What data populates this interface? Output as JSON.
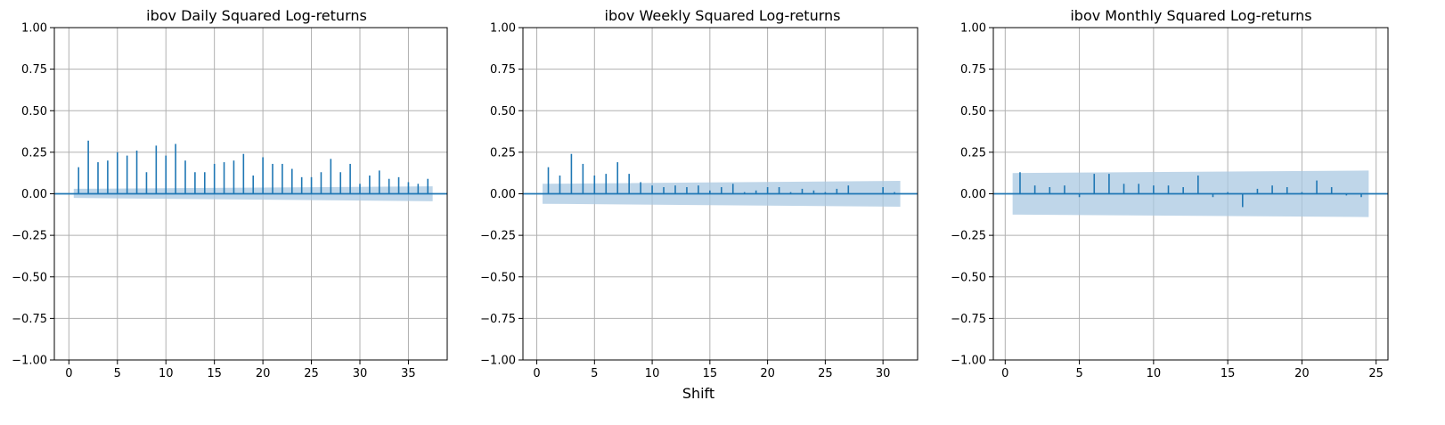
{
  "figure": {
    "xlabel": "Shift"
  },
  "colors": {
    "stem": "#1f77b4",
    "band": "#a9c8e2",
    "grid": "#b0b0b0"
  },
  "chart_data": [
    {
      "type": "bar",
      "title": "ibov Daily Squared Log-returns",
      "xlim": [
        -1.5,
        39
      ],
      "ylim": [
        -1,
        1
      ],
      "xticks": [
        0,
        5,
        10,
        15,
        20,
        25,
        30,
        35
      ],
      "yticks": [
        -1,
        -0.75,
        -0.5,
        -0.25,
        0,
        0.25,
        0.5,
        0.75,
        1
      ],
      "ytick_labels": [
        "−1.00",
        "−0.75",
        "−0.50",
        "−0.25",
        "0.00",
        "0.25",
        "0.50",
        "0.75",
        "1.00"
      ],
      "grid": true,
      "x": [
        1,
        2,
        3,
        4,
        5,
        6,
        7,
        8,
        9,
        10,
        11,
        12,
        13,
        14,
        15,
        16,
        17,
        18,
        19,
        20,
        21,
        22,
        23,
        24,
        25,
        26,
        27,
        28,
        29,
        30,
        31,
        32,
        33,
        34,
        35,
        36,
        37
      ],
      "values": [
        0.16,
        0.32,
        0.19,
        0.2,
        0.25,
        0.23,
        0.26,
        0.13,
        0.29,
        0.23,
        0.3,
        0.2,
        0.13,
        0.13,
        0.18,
        0.19,
        0.2,
        0.24,
        0.11,
        0.22,
        0.18,
        0.18,
        0.15,
        0.1,
        0.1,
        0.13,
        0.21,
        0.13,
        0.18,
        0.06,
        0.11,
        0.14,
        0.09,
        0.1,
        0.07,
        0.06,
        0.09
      ],
      "confidence_band": {
        "x": [
          0.5,
          37.5
        ],
        "upper": [
          0.03,
          0.045
        ],
        "lower": [
          -0.025,
          -0.045
        ]
      }
    },
    {
      "type": "bar",
      "title": "ibov Weekly Squared Log-returns",
      "xlim": [
        -1.2,
        33
      ],
      "ylim": [
        -1,
        1
      ],
      "xticks": [
        0,
        5,
        10,
        15,
        20,
        25,
        30
      ],
      "yticks": [
        -1,
        -0.75,
        -0.5,
        -0.25,
        0,
        0.25,
        0.5,
        0.75,
        1
      ],
      "ytick_labels": [
        "−1.00",
        "−0.75",
        "−0.50",
        "−0.25",
        "0.00",
        "0.25",
        "0.50",
        "0.75",
        "1.00"
      ],
      "grid": true,
      "x": [
        1,
        2,
        3,
        4,
        5,
        6,
        7,
        8,
        9,
        10,
        11,
        12,
        13,
        14,
        15,
        16,
        17,
        18,
        19,
        20,
        21,
        22,
        23,
        24,
        25,
        26,
        27,
        28,
        29,
        30,
        31
      ],
      "values": [
        0.16,
        0.11,
        0.24,
        0.18,
        0.11,
        0.12,
        0.19,
        0.12,
        0.07,
        0.05,
        0.04,
        0.05,
        0.04,
        0.05,
        0.02,
        0.04,
        0.06,
        0.01,
        0.02,
        0.04,
        0.04,
        0.01,
        0.03,
        0.02,
        0.01,
        0.03,
        0.05,
        0.0,
        0.0,
        0.04,
        0.01
      ],
      "confidence_band": {
        "x": [
          0.5,
          31.5
        ],
        "upper": [
          0.06,
          0.078
        ],
        "lower": [
          -0.06,
          -0.078
        ]
      }
    },
    {
      "type": "bar",
      "title": "ibov Monthly Squared Log-returns",
      "xlim": [
        -0.8,
        25.8
      ],
      "ylim": [
        -1,
        1
      ],
      "xticks": [
        0,
        5,
        10,
        15,
        20,
        25
      ],
      "yticks": [
        -1,
        -0.75,
        -0.5,
        -0.25,
        0,
        0.25,
        0.5,
        0.75,
        1
      ],
      "ytick_labels": [
        "−1.00",
        "−0.75",
        "−0.50",
        "−0.25",
        "0.00",
        "0.25",
        "0.50",
        "0.75",
        "1.00"
      ],
      "grid": true,
      "x": [
        1,
        2,
        3,
        4,
        5,
        6,
        7,
        8,
        9,
        10,
        11,
        12,
        13,
        14,
        15,
        16,
        17,
        18,
        19,
        20,
        21,
        22,
        23,
        24
      ],
      "values": [
        0.13,
        0.05,
        0.04,
        0.05,
        -0.02,
        0.12,
        0.12,
        0.06,
        0.06,
        0.05,
        0.05,
        0.04,
        0.11,
        -0.02,
        0.01,
        -0.08,
        0.03,
        0.05,
        0.04,
        0.01,
        0.08,
        0.04,
        -0.01,
        -0.02
      ],
      "confidence_band": {
        "x": [
          0.5,
          24.5
        ],
        "upper": [
          0.125,
          0.14
        ],
        "lower": [
          -0.125,
          -0.14
        ]
      }
    }
  ]
}
